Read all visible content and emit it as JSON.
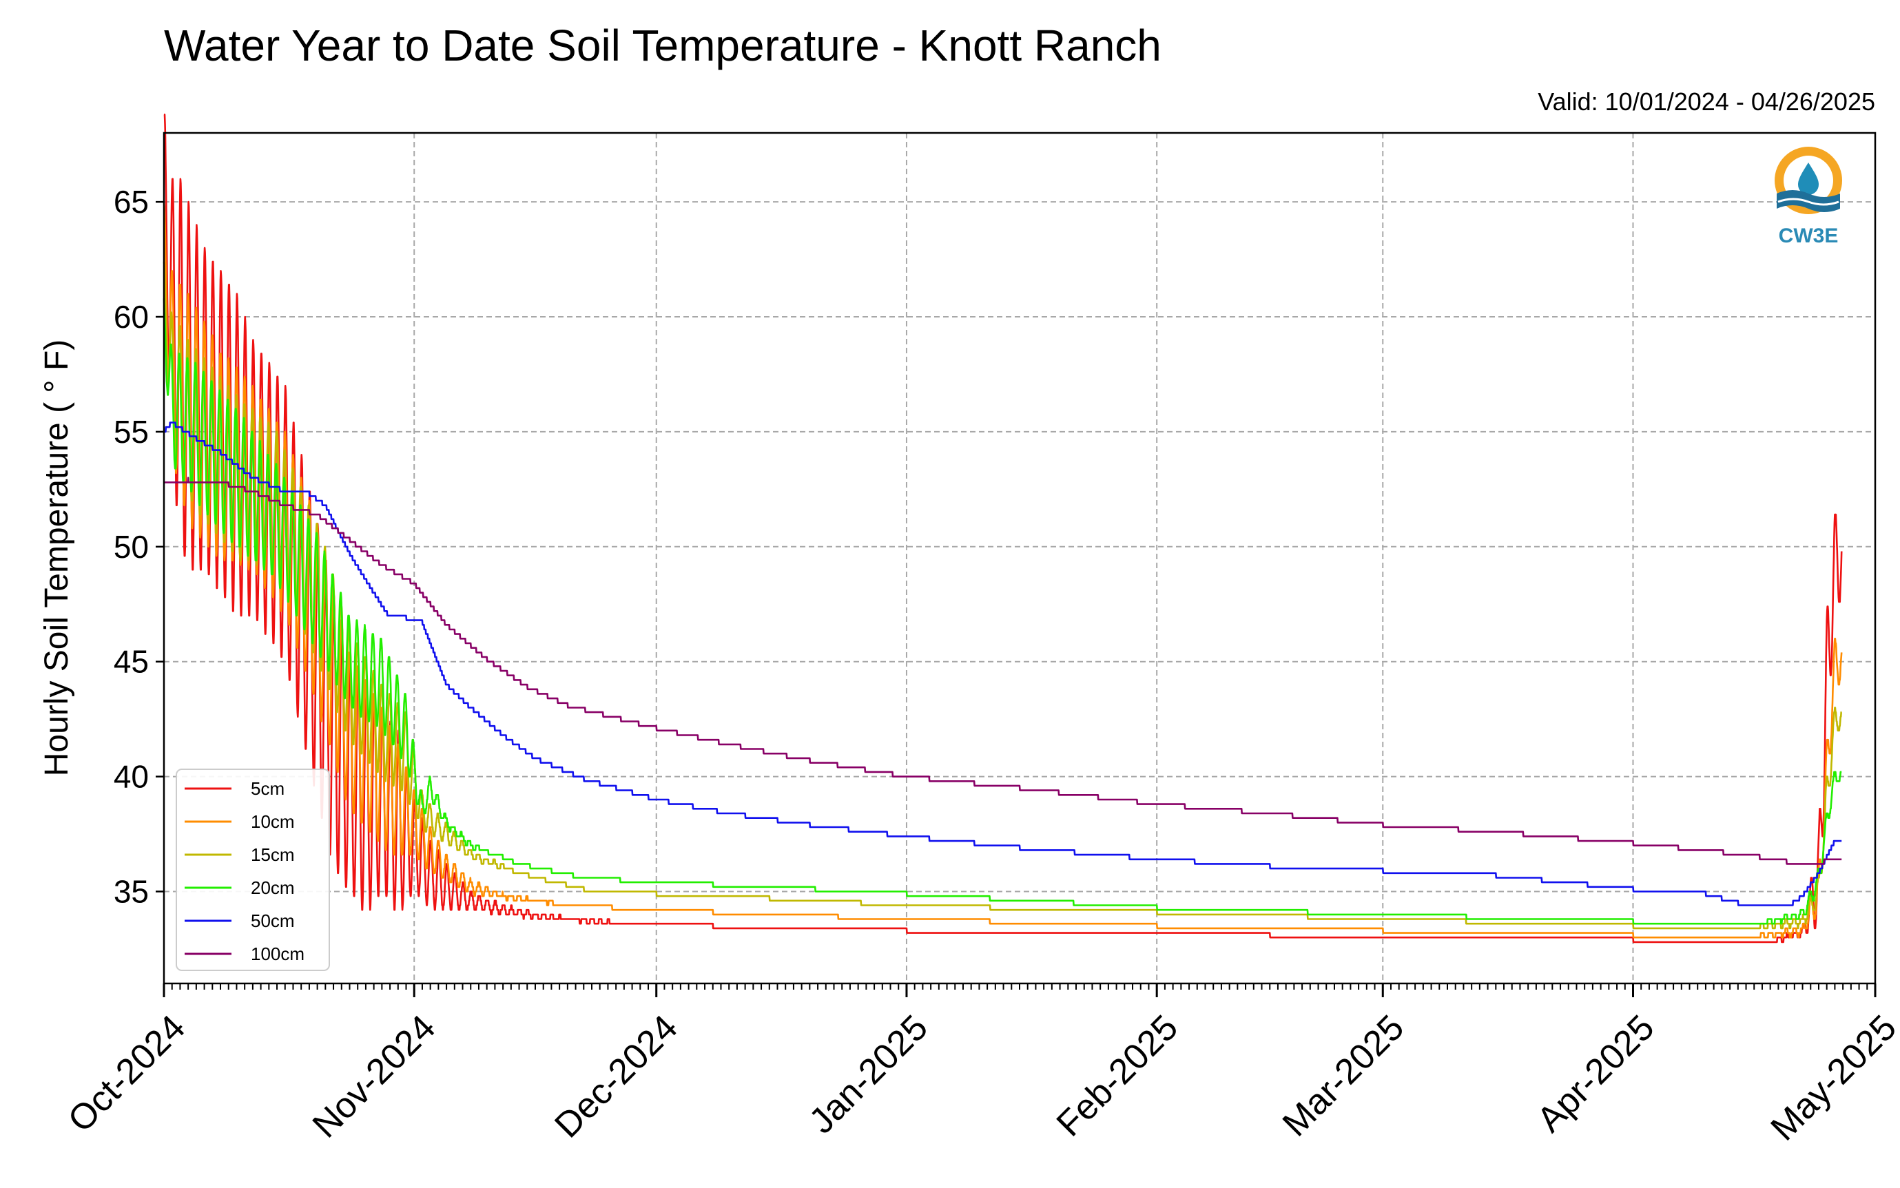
{
  "chart_data": {
    "type": "line",
    "title": "Water Year to Date Soil Temperature - Knott Ranch",
    "subtitle": "Valid: 10/01/2024 - 04/26/2025",
    "xlabel": "",
    "ylabel": "Hourly Soil Temperature ( ° F)",
    "xlim": [
      "2024-10-01",
      "2025-05-01"
    ],
    "ylim": [
      31,
      68
    ],
    "yticks": [
      35,
      40,
      45,
      50,
      55,
      60,
      65
    ],
    "ytick_labels": [
      "35",
      "40",
      "45",
      "50",
      "55",
      "60",
      "65"
    ],
    "xticks": [
      "2024-10-01",
      "2024-11-01",
      "2024-12-01",
      "2025-01-01",
      "2025-02-01",
      "2025-03-01",
      "2025-04-01",
      "2025-05-01"
    ],
    "xtick_labels": [
      "Oct-2024",
      "Nov-2024",
      "Dec-2024",
      "Jan-2025",
      "Feb-2025",
      "Mar-2025",
      "Apr-2025",
      "May-2025"
    ],
    "grid": true,
    "legend_position": "lower-left",
    "logo_text": "CW3E",
    "series": [
      {
        "name": "5cm",
        "color": "#ee1111",
        "x": [
          "2024-10-01",
          "2024-10-02",
          "2024-10-03",
          "2024-10-04",
          "2024-10-06",
          "2024-10-08",
          "2024-10-10",
          "2024-10-12",
          "2024-10-14",
          "2024-10-16",
          "2024-10-18",
          "2024-10-20",
          "2024-10-22",
          "2024-10-24",
          "2024-10-26",
          "2024-10-28",
          "2024-10-30",
          "2024-11-01",
          "2024-11-03",
          "2024-11-05",
          "2024-11-08",
          "2024-11-12",
          "2024-11-17",
          "2024-11-23",
          "2024-12-01",
          "2024-12-15",
          "2025-01-01",
          "2025-01-20",
          "2025-02-01",
          "2025-02-15",
          "2025-03-01",
          "2025-03-20",
          "2025-04-01",
          "2025-04-10",
          "2025-04-18",
          "2025-04-22",
          "2025-04-24",
          "2025-04-25",
          "2025-04-26"
        ],
        "y": [
          66.0,
          60,
          58,
          57,
          56,
          55,
          54,
          53,
          52,
          51,
          48,
          45,
          42,
          40,
          39,
          39,
          38,
          37,
          35.8,
          35.2,
          34.6,
          34.2,
          33.9,
          33.7,
          33.6,
          33.4,
          33.3,
          33.2,
          33.1,
          33.1,
          33.0,
          33.0,
          32.9,
          32.8,
          32.8,
          33.2,
          35.5,
          44.0,
          49.5
        ],
        "amp": [
          3,
          6,
          8,
          8,
          7,
          7,
          7,
          6,
          6,
          6,
          6,
          6,
          6,
          5,
          5,
          4,
          4,
          2,
          1.5,
          1,
          0.4,
          0.2,
          0.1,
          0.05,
          0,
          0,
          0,
          0,
          0,
          0,
          0,
          0,
          0,
          0,
          0,
          0.2,
          2,
          3,
          2
        ]
      },
      {
        "name": "10cm",
        "color": "#ff8c00",
        "x": [
          "2024-10-01",
          "2024-10-02",
          "2024-10-04",
          "2024-10-08",
          "2024-10-12",
          "2024-10-16",
          "2024-10-20",
          "2024-10-24",
          "2024-10-28",
          "2024-10-30",
          "2024-11-01",
          "2024-11-03",
          "2024-11-05",
          "2024-11-08",
          "2024-11-12",
          "2024-11-20",
          "2024-12-01",
          "2024-12-15",
          "2025-01-01",
          "2025-02-01",
          "2025-03-01",
          "2025-04-01",
          "2025-04-15",
          "2025-04-22",
          "2025-04-24",
          "2025-04-25",
          "2025-04-26"
        ],
        "y": [
          63.0,
          58,
          56,
          54,
          53,
          51,
          47,
          42,
          40,
          39,
          38,
          36.8,
          36.0,
          35.2,
          34.8,
          34.4,
          34.2,
          34.0,
          33.8,
          33.5,
          33.3,
          33.1,
          33.0,
          33.3,
          35.0,
          40.0,
          45.0
        ],
        "amp": [
          2,
          4,
          5,
          4.5,
          4,
          4,
          4,
          3.5,
          3,
          2.5,
          1.5,
          1,
          0.6,
          0.3,
          0.1,
          0,
          0,
          0,
          0,
          0,
          0,
          0,
          0,
          0.2,
          1,
          1.5,
          1
        ]
      },
      {
        "name": "15cm",
        "color": "#c0b800",
        "x": [
          "2024-10-01",
          "2024-10-02",
          "2024-10-05",
          "2024-10-10",
          "2024-10-15",
          "2024-10-20",
          "2024-10-24",
          "2024-10-28",
          "2024-10-31",
          "2024-11-02",
          "2024-11-04",
          "2024-11-08",
          "2024-11-14",
          "2024-11-22",
          "2024-12-01",
          "2024-12-15",
          "2025-01-01",
          "2025-02-01",
          "2025-03-01",
          "2025-04-01",
          "2025-04-15",
          "2025-04-22",
          "2025-04-24",
          "2025-04-25",
          "2025-04-26"
        ],
        "y": [
          61.0,
          57,
          55,
          53,
          52,
          48,
          44,
          42,
          41,
          38.5,
          37.8,
          36.6,
          35.8,
          35.1,
          34.9,
          34.7,
          34.4,
          34.1,
          33.8,
          33.5,
          33.4,
          33.7,
          35.0,
          39.0,
          42.5
        ],
        "amp": [
          1.5,
          3,
          3.5,
          3.5,
          3,
          3,
          2.5,
          2,
          1.8,
          0.8,
          0.5,
          0.2,
          0.05,
          0,
          0,
          0,
          0,
          0,
          0,
          0,
          0,
          0.2,
          0.6,
          1,
          0.5
        ]
      },
      {
        "name": "20cm",
        "color": "#22ee00",
        "x": [
          "2024-10-01",
          "2024-10-02",
          "2024-10-05",
          "2024-10-10",
          "2024-10-15",
          "2024-10-20",
          "2024-10-24",
          "2024-10-28",
          "2024-10-31",
          "2024-11-02",
          "2024-11-03",
          "2024-11-05",
          "2024-11-08",
          "2024-11-14",
          "2024-11-22",
          "2024-12-01",
          "2024-12-15",
          "2025-01-01",
          "2025-02-01",
          "2025-03-01",
          "2025-04-01",
          "2025-04-15",
          "2025-04-22",
          "2025-04-24",
          "2025-04-25",
          "2025-04-26"
        ],
        "y": [
          60.0,
          56,
          55,
          53,
          51,
          48,
          45,
          44,
          42,
          38.5,
          39.5,
          38.0,
          37.0,
          36.2,
          35.6,
          35.4,
          35.2,
          34.9,
          34.3,
          34.0,
          33.7,
          33.5,
          34.0,
          35.5,
          38.0,
          40.0
        ],
        "amp": [
          1,
          2.5,
          3,
          3,
          2.5,
          2.5,
          2,
          2,
          1.5,
          0.5,
          0.5,
          0.2,
          0.1,
          0,
          0,
          0,
          0,
          0,
          0,
          0,
          0,
          0,
          0.2,
          0.5,
          0.5,
          0.3
        ]
      },
      {
        "name": "50cm",
        "color": "#1010ee",
        "x": [
          "2024-10-01",
          "2024-10-02",
          "2024-10-05",
          "2024-10-08",
          "2024-10-12",
          "2024-10-16",
          "2024-10-19",
          "2024-10-21",
          "2024-10-24",
          "2024-10-27",
          "2024-10-29",
          "2024-10-31",
          "2024-11-02",
          "2024-11-05",
          "2024-11-08",
          "2024-11-12",
          "2024-11-16",
          "2024-11-22",
          "2024-12-01",
          "2024-12-10",
          "2024-12-20",
          "2025-01-01",
          "2025-01-15",
          "2025-02-01",
          "2025-02-15",
          "2025-03-01",
          "2025-03-15",
          "2025-04-01",
          "2025-04-10",
          "2025-04-15",
          "2025-04-20",
          "2025-04-22",
          "2025-04-24",
          "2025-04-26"
        ],
        "y": [
          55.0,
          55.4,
          54.7,
          54.1,
          53.0,
          52.4,
          52.3,
          51.8,
          49.7,
          48.0,
          46.9,
          46.9,
          46.7,
          44.0,
          43.0,
          41.8,
          40.8,
          39.9,
          39.0,
          38.4,
          37.9,
          37.4,
          36.9,
          36.4,
          36.1,
          35.9,
          35.7,
          35.1,
          34.9,
          34.4,
          34.3,
          34.8,
          35.8,
          37.2
        ],
        "amp": []
      },
      {
        "name": "100cm",
        "color": "#880066",
        "x": [
          "2024-10-01",
          "2024-10-04",
          "2024-10-08",
          "2024-10-12",
          "2024-10-16",
          "2024-10-20",
          "2024-10-24",
          "2024-10-28",
          "2024-11-01",
          "2024-11-05",
          "2024-11-10",
          "2024-11-15",
          "2024-11-20",
          "2024-12-01",
          "2024-12-10",
          "2024-12-20",
          "2025-01-01",
          "2025-01-15",
          "2025-02-01",
          "2025-02-15",
          "2025-03-01",
          "2025-03-15",
          "2025-04-01",
          "2025-04-15",
          "2025-04-20",
          "2025-04-22",
          "2025-04-26"
        ],
        "y": [
          52.7,
          52.9,
          52.8,
          52.4,
          51.8,
          51.4,
          50.3,
          49.2,
          48.4,
          46.6,
          45.1,
          43.9,
          43.1,
          42.1,
          41.4,
          40.7,
          40.0,
          39.5,
          38.8,
          38.4,
          37.9,
          37.6,
          37.1,
          36.6,
          36.3,
          36.1,
          36.4
        ],
        "amp": []
      }
    ]
  }
}
